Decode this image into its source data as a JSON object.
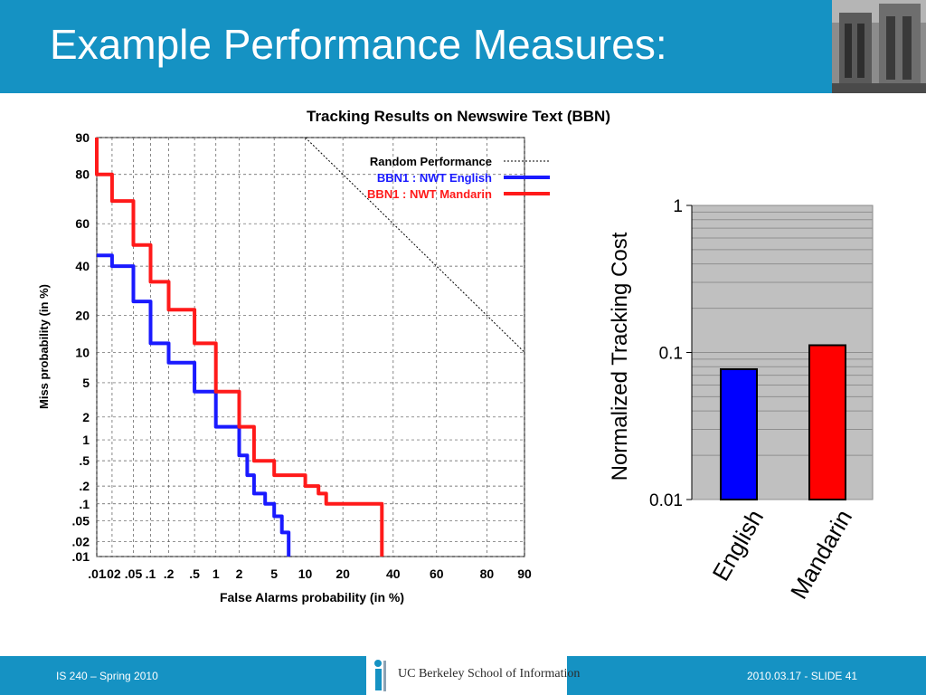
{
  "header": {
    "title": "Example Performance Measures:"
  },
  "footer": {
    "left": "IS 240 – Spring 2010",
    "org": "UC Berkeley School of Information",
    "right": "2010.03.17 -  SLIDE 41"
  },
  "chart_data": [
    {
      "type": "line",
      "title": "Tracking Results on Newswire Text (BBN)",
      "xlabel": "False Alarms probability (in %)",
      "ylabel": "Miss probability (in %)",
      "scale": "normal-deviate (DET)",
      "x_ticks": [
        ".01",
        ".02",
        ".05",
        ".1",
        ".2",
        ".5",
        "1",
        "2",
        "5",
        "10",
        "20",
        "40",
        "60",
        "80",
        "90"
      ],
      "y_ticks": [
        ".01",
        ".02",
        ".05",
        ".1",
        ".2",
        ".5",
        "1",
        "2",
        "5",
        "10",
        "20",
        "40",
        "60",
        "80",
        "90"
      ],
      "xlim": [
        0.01,
        90
      ],
      "ylim": [
        0.01,
        90
      ],
      "grid": true,
      "legend": "top-right",
      "series": [
        {
          "name": "Random Performance",
          "color": "#000000",
          "style": "dotted",
          "points": [
            [
              10,
              90
            ],
            [
              20,
              80
            ],
            [
              40,
              60
            ],
            [
              60,
              40
            ],
            [
              80,
              20
            ],
            [
              90,
              10
            ]
          ]
        },
        {
          "name": "BBN1 : NWT English",
          "color": "#1a1aff",
          "points": [
            [
              0.01,
              45
            ],
            [
              0.02,
              40
            ],
            [
              0.05,
              25
            ],
            [
              0.1,
              12
            ],
            [
              0.2,
              8
            ],
            [
              0.5,
              4
            ],
            [
              1,
              1.5
            ],
            [
              2,
              0.6
            ],
            [
              2.5,
              0.3
            ],
            [
              3,
              0.15
            ],
            [
              4,
              0.1
            ],
            [
              5,
              0.06
            ],
            [
              6,
              0.03
            ],
            [
              7,
              0.015
            ],
            [
              7,
              0.01
            ]
          ]
        },
        {
          "name": "BBN1 : NWT Mandarin",
          "color": "#ff1a1a",
          "points": [
            [
              0.01,
              90
            ],
            [
              0.01,
              80
            ],
            [
              0.02,
              70
            ],
            [
              0.05,
              50
            ],
            [
              0.1,
              33
            ],
            [
              0.2,
              22
            ],
            [
              0.5,
              12
            ],
            [
              1,
              7
            ],
            [
              1,
              4
            ],
            [
              2,
              1.5
            ],
            [
              3,
              0.5
            ],
            [
              5,
              0.3
            ],
            [
              10,
              0.2
            ],
            [
              13,
              0.15
            ],
            [
              15,
              0.1
            ],
            [
              35,
              0.1
            ],
            [
              35,
              0.01
            ]
          ]
        }
      ]
    },
    {
      "type": "bar",
      "ylabel": "Normalized Tracking Cost",
      "y_scale": "log",
      "ylim": [
        0.01,
        1
      ],
      "y_ticks": [
        "0.01",
        "0.1",
        "1"
      ],
      "categories": [
        "English",
        "Mandarin"
      ],
      "values": [
        0.077,
        0.112
      ],
      "colors": [
        "#0000ff",
        "#ff0000"
      ],
      "plot_background": "#c0c0c0"
    }
  ]
}
